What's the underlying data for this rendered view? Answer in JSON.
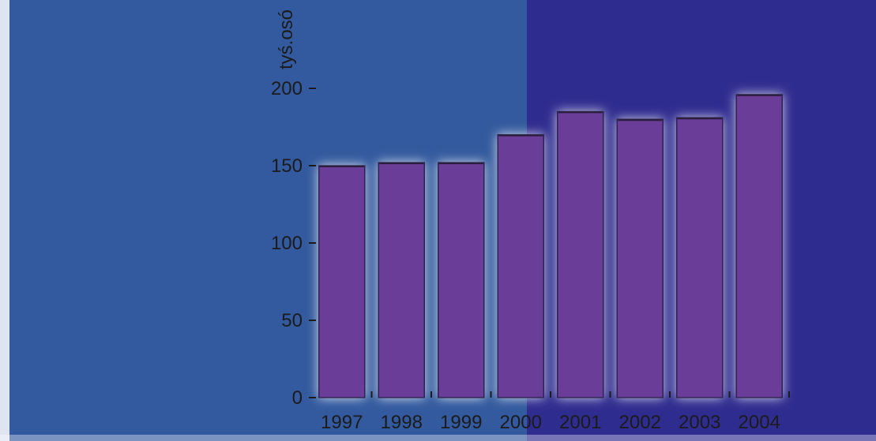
{
  "chart_data": {
    "type": "bar",
    "categories": [
      "1997",
      "1998",
      "1999",
      "2000",
      "2001",
      "2002",
      "2003",
      "2004"
    ],
    "values": [
      150,
      152,
      152,
      170,
      185,
      180,
      181,
      196
    ],
    "ylabel": "tyś.osó",
    "ylim": [
      0,
      200
    ],
    "yticks": [
      0,
      50,
      100,
      150,
      200
    ],
    "grid": false,
    "legend": "none"
  },
  "colors": {
    "background_left": "#335a9e",
    "background_right": "#2f2c8f",
    "bar_fill": "#6a3e98",
    "bar_glow": "#c8cbe8",
    "axis": "#1b1b1b",
    "text": "#1b1b1b"
  }
}
